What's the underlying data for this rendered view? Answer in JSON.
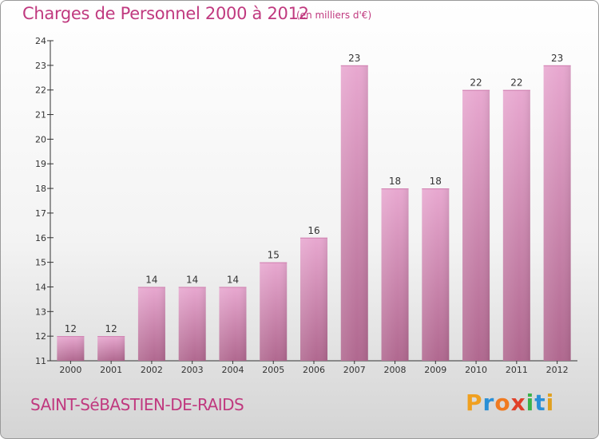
{
  "title": "Charges de Personnel 2000 à 2012",
  "subtitle": "(en milliers d'€)",
  "commune": "SAINT-SéBASTIEN-DE-RAIDS",
  "logo": {
    "letters": [
      "P",
      "r",
      "o",
      "x",
      "i",
      "t",
      "i"
    ],
    "colors": [
      "#f0a020",
      "#2a8fd6",
      "#f07a20",
      "#e0402a",
      "#3bb24a",
      "#2a8fd6",
      "#e0a020"
    ]
  },
  "colors": {
    "bar_top": "#e8a8d0",
    "bar_bottom": "#b0688f",
    "text": "#c0397f"
  },
  "chart_data": {
    "type": "bar",
    "categories": [
      "2000",
      "2001",
      "2002",
      "2003",
      "2004",
      "2005",
      "2006",
      "2007",
      "2008",
      "2009",
      "2010",
      "2011",
      "2012"
    ],
    "values": [
      12,
      12,
      14,
      14,
      14,
      15,
      16,
      23,
      18,
      18,
      22,
      22,
      23
    ],
    "data_labels": [
      "12",
      "12",
      "14",
      "14",
      "14",
      "15",
      "16",
      "23",
      "18",
      "18",
      "22",
      "22",
      "23"
    ],
    "y_ticks": [
      "11",
      "12",
      "13",
      "14",
      "15",
      "16",
      "17",
      "18",
      "19",
      "20",
      "21",
      "22",
      "23",
      "24"
    ],
    "ylim": [
      11,
      24
    ],
    "grid": false
  }
}
